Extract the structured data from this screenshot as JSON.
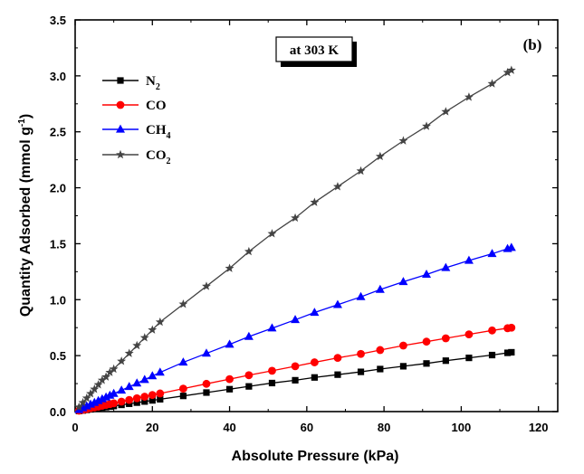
{
  "chart_data": {
    "type": "line",
    "panel_label": "(b)",
    "annotation": "at 303 K",
    "xlabel": "Absolute Pressure (kPa)",
    "ylabel": {
      "prefix": "Quantity Adsorbed (mmol g",
      "sup": "-1",
      "suffix": ")"
    },
    "xlim": [
      0,
      125
    ],
    "ylim": [
      0,
      3.5
    ],
    "xticks": [
      0,
      20,
      40,
      60,
      80,
      100,
      120
    ],
    "yticks": [
      0.0,
      0.5,
      1.0,
      1.5,
      2.0,
      2.5,
      3.0,
      3.5
    ],
    "xtick_labels": [
      "0",
      "20",
      "40",
      "60",
      "80",
      "100",
      "120"
    ],
    "ytick_labels": [
      "0.0",
      "0.5",
      "1.0",
      "1.5",
      "2.0",
      "2.5",
      "3.0",
      "3.5"
    ],
    "grid": false,
    "legend_position": "top-left",
    "x": [
      1,
      2,
      3,
      4,
      5,
      6,
      7,
      8,
      9,
      10,
      12,
      14,
      16,
      18,
      20,
      22,
      28,
      34,
      40,
      45,
      51,
      57,
      62,
      68,
      74,
      79,
      85,
      91,
      96,
      102,
      108,
      112,
      113
    ],
    "series": [
      {
        "name": "N2",
        "label_base": "N",
        "label_sub": "2",
        "color": "#000000",
        "marker": "square",
        "values": [
          0.005,
          0.01,
          0.015,
          0.02,
          0.025,
          0.03,
          0.035,
          0.04,
          0.045,
          0.05,
          0.06,
          0.07,
          0.08,
          0.09,
          0.1,
          0.11,
          0.14,
          0.17,
          0.2,
          0.225,
          0.255,
          0.28,
          0.305,
          0.33,
          0.355,
          0.38,
          0.405,
          0.43,
          0.455,
          0.48,
          0.505,
          0.525,
          0.53
        ]
      },
      {
        "name": "CO",
        "label_base": "CO",
        "label_sub": "",
        "color": "#ff0000",
        "marker": "circle",
        "values": [
          0.008,
          0.015,
          0.022,
          0.03,
          0.037,
          0.044,
          0.052,
          0.06,
          0.067,
          0.074,
          0.089,
          0.104,
          0.119,
          0.133,
          0.148,
          0.162,
          0.205,
          0.248,
          0.29,
          0.325,
          0.365,
          0.405,
          0.44,
          0.48,
          0.515,
          0.55,
          0.59,
          0.625,
          0.655,
          0.69,
          0.725,
          0.745,
          0.75
        ]
      },
      {
        "name": "CH4",
        "label_base": "CH",
        "label_sub": "4",
        "color": "#0000ff",
        "marker": "triangle",
        "values": [
          0.016,
          0.032,
          0.048,
          0.064,
          0.08,
          0.096,
          0.112,
          0.128,
          0.144,
          0.16,
          0.19,
          0.222,
          0.253,
          0.285,
          0.318,
          0.35,
          0.44,
          0.52,
          0.6,
          0.67,
          0.745,
          0.82,
          0.885,
          0.955,
          1.025,
          1.09,
          1.16,
          1.225,
          1.285,
          1.35,
          1.41,
          1.455,
          1.465
        ]
      },
      {
        "name": "CO2",
        "label_base": "CO",
        "label_sub": "2",
        "color": "#444444",
        "marker": "star",
        "values": [
          0.04,
          0.08,
          0.12,
          0.16,
          0.2,
          0.24,
          0.28,
          0.31,
          0.35,
          0.38,
          0.45,
          0.52,
          0.59,
          0.66,
          0.73,
          0.8,
          0.96,
          1.12,
          1.28,
          1.43,
          1.59,
          1.73,
          1.87,
          2.01,
          2.15,
          2.28,
          2.42,
          2.55,
          2.68,
          2.81,
          2.93,
          3.03,
          3.05
        ]
      }
    ]
  }
}
